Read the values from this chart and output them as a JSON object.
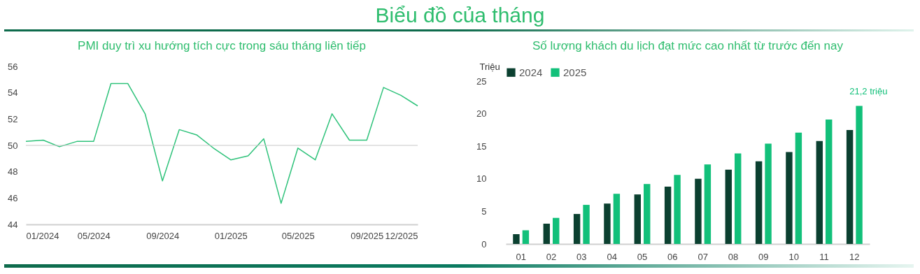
{
  "chart_data": [
    {
      "type": "other",
      "title": "Biểu đồ của tháng"
    },
    {
      "type": "line",
      "title": "PMI duy trì xu hướng tích cực trong sáu tháng liên tiếp",
      "x": [
        "2024-01",
        "2024-02",
        "2024-03",
        "2024-04",
        "2024-05",
        "2024-06",
        "2024-07",
        "2024-08",
        "2024-09",
        "2024-10",
        "2024-11",
        "2024-12",
        "2025-01",
        "2025-02",
        "2025-03",
        "2025-04",
        "2025-05",
        "2025-06",
        "2025-07",
        "2025-08",
        "2025-09",
        "2025-10",
        "2025-11",
        "2025-12"
      ],
      "series": [
        {
          "color": "#2ec27a",
          "values": [
            50.3,
            50.4,
            49.9,
            50.3,
            50.3,
            54.7,
            54.7,
            52.4,
            47.3,
            51.2,
            50.8,
            49.8,
            48.9,
            49.2,
            50.5,
            45.6,
            49.8,
            48.9,
            52.4,
            50.4,
            50.4,
            54.4,
            53.8,
            53.0
          ]
        }
      ],
      "xlim": [
        "2024-01",
        "2025-12"
      ],
      "xticks": [
        {
          "value": "2024-01",
          "label": "01/2024"
        },
        {
          "value": "2024-05",
          "label": "05/2024"
        },
        {
          "value": "2024-09",
          "label": "09/2024"
        },
        {
          "value": "2025-01",
          "label": "01/2025"
        },
        {
          "value": "2025-05",
          "label": "05/2025"
        },
        {
          "value": "2025-09",
          "label": "09/2025"
        },
        {
          "value": "2025-12",
          "label": "12/2025"
        }
      ],
      "ylim": [
        44,
        56
      ],
      "yticks": [
        44,
        46,
        48,
        50,
        52,
        54,
        56
      ],
      "ref_lines": [
        {
          "axis": "y",
          "value": 50,
          "color": "#c8c8c8"
        }
      ]
    },
    {
      "type": "bar",
      "title": "Số lượng khách du lịch đạt mức cao nhất từ trước đến nay",
      "ylabel": "Triệu",
      "categories": [
        "01",
        "02",
        "03",
        "04",
        "05",
        "06",
        "07",
        "08",
        "09",
        "10",
        "11",
        "12"
      ],
      "series": [
        {
          "name": "2024",
          "color": "#0b4030",
          "values": [
            1.5,
            3.1,
            4.6,
            6.2,
            7.6,
            8.8,
            10.0,
            11.4,
            12.7,
            14.1,
            15.8,
            17.5
          ]
        },
        {
          "name": "2025",
          "color": "#12c07a",
          "values": [
            2.1,
            4.0,
            6.0,
            7.7,
            9.2,
            10.6,
            12.2,
            13.9,
            15.4,
            17.1,
            19.1,
            21.2
          ]
        }
      ],
      "ylim": [
        0,
        25
      ],
      "yticks": [
        0,
        5,
        10,
        15,
        20,
        25
      ],
      "legend": "top",
      "annotations": [
        {
          "text": "21,2 triệu",
          "x": "12",
          "y": 21.2
        }
      ]
    }
  ]
}
